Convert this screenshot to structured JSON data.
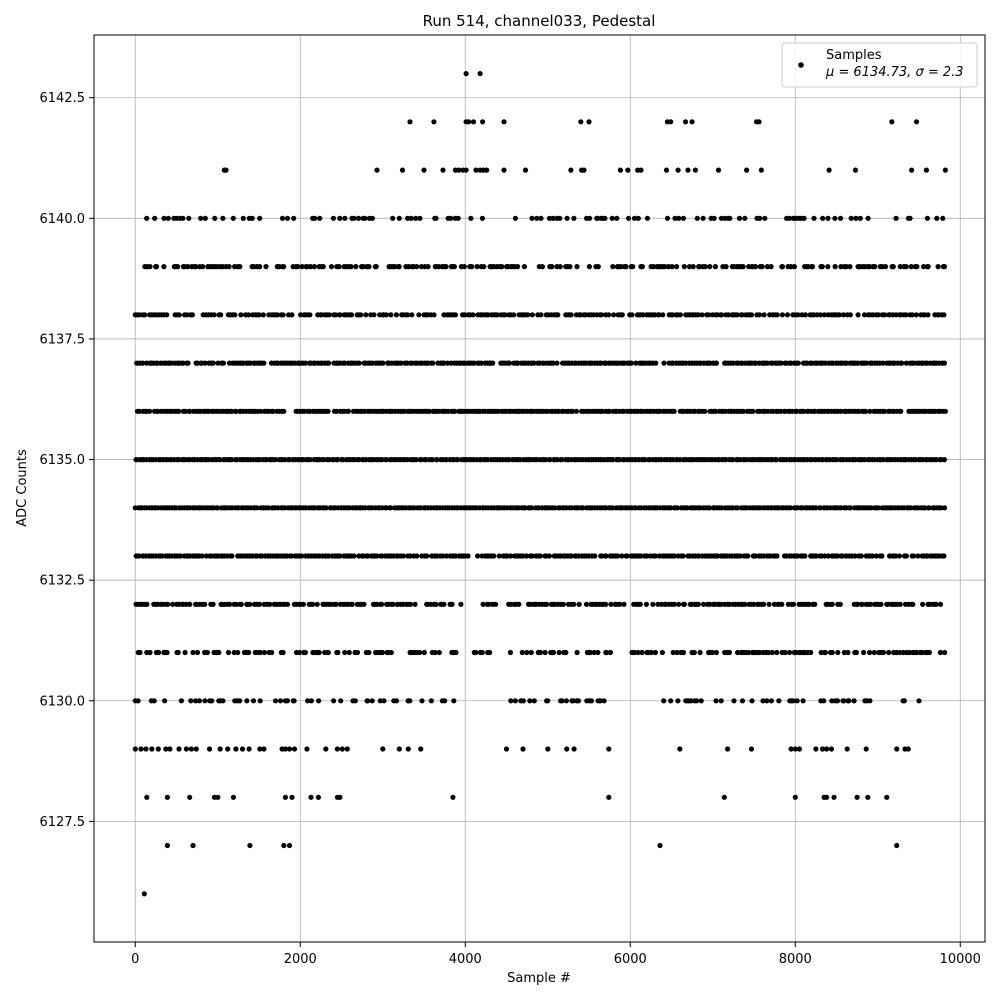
{
  "chart_data": {
    "type": "scatter",
    "title": "Run 514, channel033, Pedestal",
    "xlabel": "Sample #",
    "ylabel": "ADC Counts",
    "xlim": [
      -500,
      10300
    ],
    "ylim": [
      6125,
      6143.8
    ],
    "x_ticks": [
      0,
      2000,
      4000,
      6000,
      8000,
      10000
    ],
    "y_ticks": [
      6127.5,
      6130.0,
      6132.5,
      6135.0,
      6137.5,
      6140.0,
      6142.5
    ],
    "grid": true,
    "legend_position": "top-right",
    "marker_color": "#000000",
    "series": [
      {
        "name": "Samples",
        "stats_label": "μ = 6134.73, σ = 2.3",
        "sample_range": [
          0,
          9820
        ],
        "value_levels": [
          6126,
          6127,
          6128,
          6129,
          6130,
          6131,
          6132,
          6133,
          6134,
          6135,
          6136,
          6137,
          6138,
          6139,
          6140,
          6141,
          6142,
          6143
        ],
        "sparse_points": [
          {
            "x": 110,
            "y": 6126
          },
          {
            "x": 390,
            "y": 6127
          },
          {
            "x": 700,
            "y": 6127
          },
          {
            "x": 1390,
            "y": 6127
          },
          {
            "x": 1800,
            "y": 6127
          },
          {
            "x": 1870,
            "y": 6127
          },
          {
            "x": 6360,
            "y": 6127
          },
          {
            "x": 9230,
            "y": 6127
          },
          {
            "x": 140,
            "y": 6128
          },
          {
            "x": 390,
            "y": 6128
          },
          {
            "x": 660,
            "y": 6128
          },
          {
            "x": 960,
            "y": 6128
          },
          {
            "x": 1000,
            "y": 6128
          },
          {
            "x": 1190,
            "y": 6128
          },
          {
            "x": 1820,
            "y": 6128
          },
          {
            "x": 1900,
            "y": 6128
          },
          {
            "x": 2130,
            "y": 6128
          },
          {
            "x": 2220,
            "y": 6128
          },
          {
            "x": 2450,
            "y": 6128
          },
          {
            "x": 2480,
            "y": 6128
          },
          {
            "x": 3850,
            "y": 6128
          },
          {
            "x": 5740,
            "y": 6128
          },
          {
            "x": 7140,
            "y": 6128
          },
          {
            "x": 8000,
            "y": 6128
          },
          {
            "x": 8350,
            "y": 6128
          },
          {
            "x": 8380,
            "y": 6128
          },
          {
            "x": 8470,
            "y": 6128
          },
          {
            "x": 8750,
            "y": 6128
          },
          {
            "x": 8880,
            "y": 6128
          },
          {
            "x": 9110,
            "y": 6128
          },
          {
            "x": 0,
            "y": 6129
          },
          {
            "x": 70,
            "y": 6129
          },
          {
            "x": 130,
            "y": 6129
          },
          {
            "x": 200,
            "y": 6129
          },
          {
            "x": 280,
            "y": 6129
          },
          {
            "x": 370,
            "y": 6129
          },
          {
            "x": 420,
            "y": 6129
          },
          {
            "x": 530,
            "y": 6129
          },
          {
            "x": 620,
            "y": 6129
          },
          {
            "x": 680,
            "y": 6129
          },
          {
            "x": 740,
            "y": 6129
          },
          {
            "x": 900,
            "y": 6129
          },
          {
            "x": 1030,
            "y": 6129
          },
          {
            "x": 1120,
            "y": 6129
          },
          {
            "x": 1220,
            "y": 6129
          },
          {
            "x": 1300,
            "y": 6129
          },
          {
            "x": 1380,
            "y": 6129
          },
          {
            "x": 1510,
            "y": 6129
          },
          {
            "x": 1560,
            "y": 6129
          },
          {
            "x": 1780,
            "y": 6129
          },
          {
            "x": 1820,
            "y": 6129
          },
          {
            "x": 1870,
            "y": 6129
          },
          {
            "x": 1930,
            "y": 6129
          },
          {
            "x": 2080,
            "y": 6129
          },
          {
            "x": 2310,
            "y": 6129
          },
          {
            "x": 2450,
            "y": 6129
          },
          {
            "x": 2510,
            "y": 6129
          },
          {
            "x": 2570,
            "y": 6129
          },
          {
            "x": 3000,
            "y": 6129
          },
          {
            "x": 3200,
            "y": 6129
          },
          {
            "x": 3310,
            "y": 6129
          },
          {
            "x": 3460,
            "y": 6129
          },
          {
            "x": 4500,
            "y": 6129
          },
          {
            "x": 4700,
            "y": 6129
          },
          {
            "x": 5000,
            "y": 6129
          },
          {
            "x": 5230,
            "y": 6129
          },
          {
            "x": 5320,
            "y": 6129
          },
          {
            "x": 5740,
            "y": 6129
          },
          {
            "x": 6600,
            "y": 6129
          },
          {
            "x": 7180,
            "y": 6129
          },
          {
            "x": 7470,
            "y": 6129
          },
          {
            "x": 7950,
            "y": 6129
          },
          {
            "x": 8000,
            "y": 6129
          },
          {
            "x": 8050,
            "y": 6129
          },
          {
            "x": 8250,
            "y": 6129
          },
          {
            "x": 8330,
            "y": 6129
          },
          {
            "x": 8380,
            "y": 6129
          },
          {
            "x": 8440,
            "y": 6129
          },
          {
            "x": 8630,
            "y": 6129
          },
          {
            "x": 8860,
            "y": 6129
          },
          {
            "x": 9230,
            "y": 6129
          },
          {
            "x": 9330,
            "y": 6129
          },
          {
            "x": 9370,
            "y": 6129
          },
          {
            "x": 1080,
            "y": 6141
          },
          {
            "x": 1100,
            "y": 6141
          },
          {
            "x": 2930,
            "y": 6141
          },
          {
            "x": 3240,
            "y": 6141
          },
          {
            "x": 3500,
            "y": 6141
          },
          {
            "x": 3730,
            "y": 6141
          },
          {
            "x": 3880,
            "y": 6141
          },
          {
            "x": 3920,
            "y": 6141
          },
          {
            "x": 3970,
            "y": 6141
          },
          {
            "x": 4010,
            "y": 6141
          },
          {
            "x": 4130,
            "y": 6141
          },
          {
            "x": 4180,
            "y": 6141
          },
          {
            "x": 4220,
            "y": 6141
          },
          {
            "x": 4260,
            "y": 6141
          },
          {
            "x": 4470,
            "y": 6141
          },
          {
            "x": 4730,
            "y": 6141
          },
          {
            "x": 5280,
            "y": 6141
          },
          {
            "x": 5410,
            "y": 6141
          },
          {
            "x": 5440,
            "y": 6141
          },
          {
            "x": 5880,
            "y": 6141
          },
          {
            "x": 5970,
            "y": 6141
          },
          {
            "x": 6090,
            "y": 6141
          },
          {
            "x": 6130,
            "y": 6141
          },
          {
            "x": 6440,
            "y": 6141
          },
          {
            "x": 6580,
            "y": 6141
          },
          {
            "x": 6700,
            "y": 6141
          },
          {
            "x": 6790,
            "y": 6141
          },
          {
            "x": 7070,
            "y": 6141
          },
          {
            "x": 7410,
            "y": 6141
          },
          {
            "x": 7590,
            "y": 6141
          },
          {
            "x": 8410,
            "y": 6141
          },
          {
            "x": 8730,
            "y": 6141
          },
          {
            "x": 9410,
            "y": 6141
          },
          {
            "x": 9590,
            "y": 6141
          },
          {
            "x": 9820,
            "y": 6141
          },
          {
            "x": 3330,
            "y": 6142
          },
          {
            "x": 3620,
            "y": 6142
          },
          {
            "x": 4010,
            "y": 6142
          },
          {
            "x": 4040,
            "y": 6142
          },
          {
            "x": 4100,
            "y": 6142
          },
          {
            "x": 4210,
            "y": 6142
          },
          {
            "x": 4470,
            "y": 6142
          },
          {
            "x": 5400,
            "y": 6142
          },
          {
            "x": 5500,
            "y": 6142
          },
          {
            "x": 6450,
            "y": 6142
          },
          {
            "x": 6490,
            "y": 6142
          },
          {
            "x": 6670,
            "y": 6142
          },
          {
            "x": 6750,
            "y": 6142
          },
          {
            "x": 7530,
            "y": 6142
          },
          {
            "x": 7560,
            "y": 6142
          },
          {
            "x": 9170,
            "y": 6142
          },
          {
            "x": 9470,
            "y": 6142
          },
          {
            "x": 4010,
            "y": 6143
          },
          {
            "x": 4180,
            "y": 6143
          }
        ],
        "dense_rows": [
          {
            "y": 6130,
            "segments": [
              [
                0,
                3900
              ],
              [
                4500,
                5700
              ],
              [
                6300,
                7900
              ],
              [
                7900,
                9500
              ]
            ],
            "density": 0.35
          },
          {
            "y": 6131,
            "segments": [
              [
                0,
                2700
              ],
              [
                2800,
                3900
              ],
              [
                4100,
                6400
              ],
              [
                6500,
                9820
              ]
            ],
            "density": 0.55
          },
          {
            "y": 6132,
            "segments": [
              [
                0,
                3950
              ],
              [
                4200,
                9820
              ]
            ],
            "density": 0.7
          },
          {
            "y": 6133,
            "segments": [
              [
                0,
                4050
              ],
              [
                4150,
                9820
              ]
            ],
            "density": 0.9
          },
          {
            "y": 6134,
            "segments": [
              [
                0,
                9820
              ]
            ],
            "density": 1.0
          },
          {
            "y": 6135,
            "segments": [
              [
                0,
                9820
              ]
            ],
            "density": 1.0
          },
          {
            "y": 6136,
            "segments": [
              [
                0,
                1800
              ],
              [
                1950,
                9820
              ]
            ],
            "density": 0.95
          },
          {
            "y": 6137,
            "segments": [
              [
                0,
                9820
              ]
            ],
            "density": 0.9
          },
          {
            "y": 6138,
            "segments": [
              [
                0,
                9820
              ]
            ],
            "density": 0.75
          },
          {
            "y": 6139,
            "segments": [
              [
                100,
                9820
              ]
            ],
            "density": 0.55
          },
          {
            "y": 6140,
            "segments": [
              [
                100,
                9820
              ]
            ],
            "density": 0.3
          }
        ]
      }
    ]
  }
}
